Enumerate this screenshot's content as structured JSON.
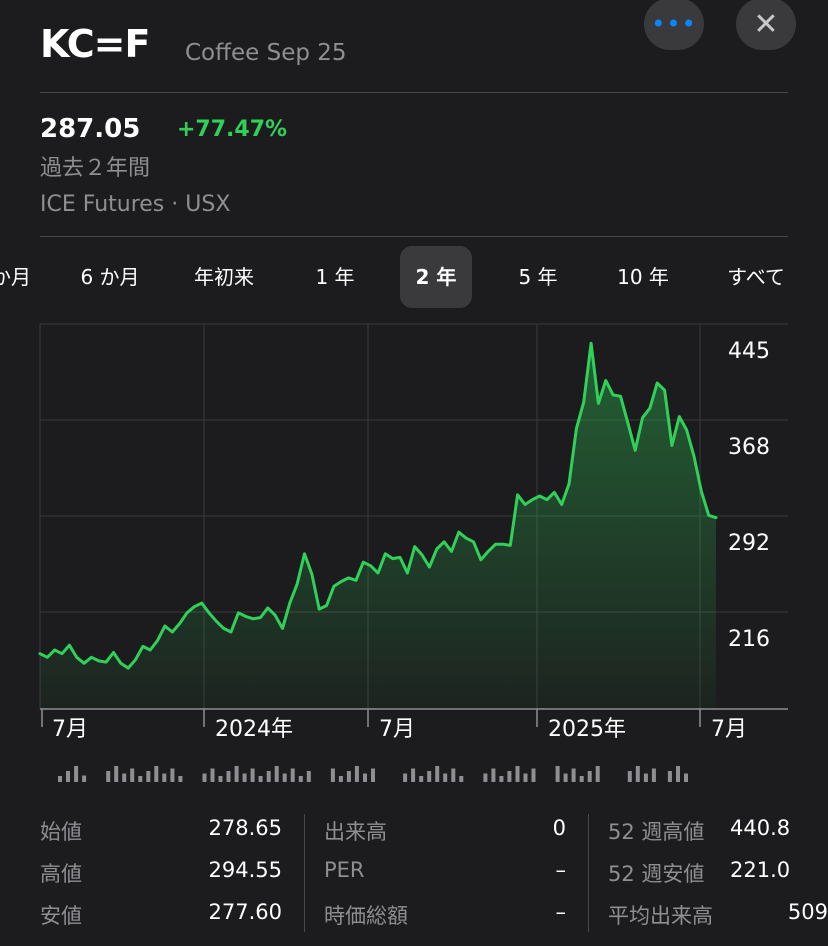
{
  "header": {
    "ticker": "KC=F",
    "name": "Coffee Sep 25",
    "more_icon": "ellipsis-icon",
    "close_icon": "close-icon",
    "more_glyph": "•••",
    "close_glyph": "✕"
  },
  "quote": {
    "price": "287.05",
    "change": "+77.47%",
    "period": "過去２年間",
    "exchange": "ICE Futures · USX"
  },
  "range_tabs": {
    "items": [
      "か月",
      "6 か月",
      "年初来",
      "1 年",
      "2 年",
      "5 年",
      "10 年",
      "すべて"
    ],
    "active": "2 年"
  },
  "colors": {
    "up": "#30d158",
    "accent": "#0a84ff"
  },
  "chart_data": {
    "type": "area",
    "x_tick_labels": [
      "7月",
      "2024年",
      "7月",
      "2025年",
      "7月"
    ],
    "y_tick_labels": [
      "445",
      "368",
      "292",
      "216"
    ],
    "ylim": [
      140,
      460
    ],
    "grid": true,
    "series": [
      {
        "values": [
          186,
          183,
          189,
          186,
          193,
          183,
          178,
          183,
          180,
          179,
          187,
          178,
          174,
          181,
          192,
          189,
          197,
          209,
          204,
          211,
          220,
          225,
          228,
          220,
          213,
          207,
          204,
          220,
          217,
          215,
          216,
          224,
          218,
          207,
          228,
          244,
          269,
          252,
          223,
          226,
          242,
          246,
          249,
          247,
          262,
          259,
          253,
          269,
          265,
          266,
          253,
          275,
          268,
          258,
          273,
          279,
          271,
          287,
          282,
          279,
          264,
          271,
          277,
          277,
          276,
          318,
          310,
          314,
          317,
          314,
          320,
          310,
          327,
          373,
          395,
          444,
          394,
          413,
          401,
          400,
          378,
          355,
          382,
          390,
          411,
          405,
          359,
          383,
          372,
          350,
          321,
          301,
          299
        ]
      }
    ]
  },
  "volume_bars": [
    1,
    1,
    1,
    0.4,
    0,
    0,
    1,
    1,
    1,
    1,
    1,
    1,
    1,
    1,
    1,
    1,
    0,
    0,
    1,
    1,
    1,
    1,
    1,
    1,
    1,
    1,
    1,
    1,
    1,
    1,
    1,
    1,
    0,
    0,
    1,
    1,
    1,
    1,
    1,
    1,
    0,
    0,
    0,
    1,
    1,
    1,
    1,
    1,
    1,
    1,
    1,
    0,
    0,
    1,
    1,
    1,
    1,
    1,
    1,
    1,
    0,
    0,
    1,
    1,
    1,
    1,
    1,
    1,
    0,
    0,
    0,
    1,
    1,
    1,
    1,
    0,
    1,
    1,
    1
  ],
  "stats": {
    "col1": [
      {
        "label": "始値",
        "value": "278.65"
      },
      {
        "label": "高値",
        "value": "294.55"
      },
      {
        "label": "安値",
        "value": "277.60"
      }
    ],
    "col2": [
      {
        "label": "出来高",
        "value": "0"
      },
      {
        "label": "PER",
        "value": "–"
      },
      {
        "label": "時価総額",
        "value": "–"
      }
    ],
    "col3": [
      {
        "label": "52 週高値",
        "value": "440.8"
      },
      {
        "label": "52 週安値",
        "value": "221.0"
      },
      {
        "label": "平均出来高",
        "value": "509"
      }
    ]
  }
}
